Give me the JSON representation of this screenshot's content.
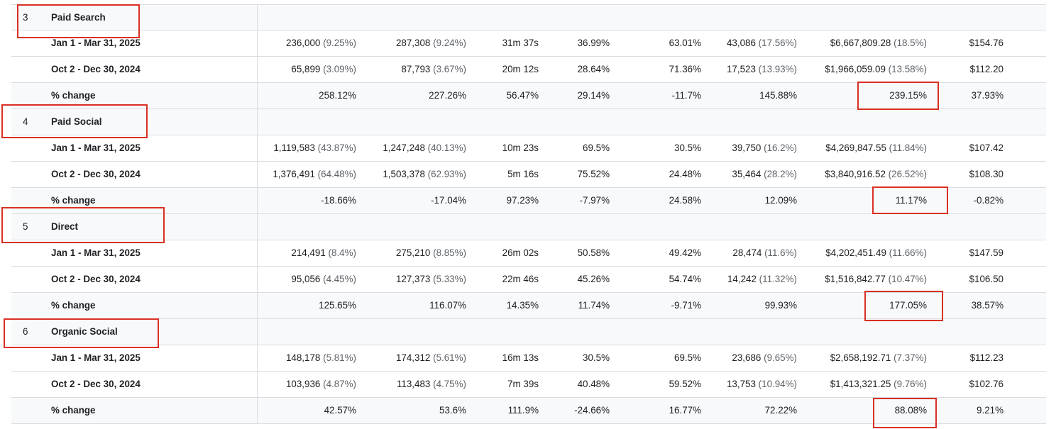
{
  "sections": [
    {
      "index": "3",
      "channel": "Paid Search",
      "rows": [
        {
          "label": "Jan 1 - Mar 31, 2025",
          "c1": "236,000",
          "c1p": "(9.25%)",
          "c2": "287,308",
          "c2p": "(9.24%)",
          "c3": "31m 37s",
          "c4": "36.99%",
          "c5": "63.01%",
          "c6": "43,086",
          "c6p": "(17.56%)",
          "c7": "$6,667,809.28",
          "c7p": "(18.5%)",
          "c8": "$154.76"
        },
        {
          "label": "Oct 2 - Dec 30, 2024",
          "c1": "65,899",
          "c1p": "(3.09%)",
          "c2": "87,793",
          "c2p": "(3.67%)",
          "c3": "20m 12s",
          "c4": "28.64%",
          "c5": "71.36%",
          "c6": "17,523",
          "c6p": "(13.93%)",
          "c7": "$1,966,059.09",
          "c7p": "(13.58%)",
          "c8": "$112.20"
        },
        {
          "label": "% change",
          "c1": "258.12%",
          "c1p": "",
          "c2": "227.26%",
          "c2p": "",
          "c3": "56.47%",
          "c4": "29.14%",
          "c5": "-11.7%",
          "c6": "145.88%",
          "c6p": "",
          "c7": "239.15%",
          "c7p": "",
          "c8": "37.93%"
        }
      ]
    },
    {
      "index": "4",
      "channel": "Paid Social",
      "rows": [
        {
          "label": "Jan 1 - Mar 31, 2025",
          "c1": "1,119,583",
          "c1p": "(43.87%)",
          "c2": "1,247,248",
          "c2p": "(40.13%)",
          "c3": "10m 23s",
          "c4": "69.5%",
          "c5": "30.5%",
          "c6": "39,750",
          "c6p": "(16.2%)",
          "c7": "$4,269,847.55",
          "c7p": "(11.84%)",
          "c8": "$107.42"
        },
        {
          "label": "Oct 2 - Dec 30, 2024",
          "c1": "1,376,491",
          "c1p": "(64.48%)",
          "c2": "1,503,378",
          "c2p": "(62.93%)",
          "c3": "5m 16s",
          "c4": "75.52%",
          "c5": "24.48%",
          "c6": "35,464",
          "c6p": "(28.2%)",
          "c7": "$3,840,916.52",
          "c7p": "(26.52%)",
          "c8": "$108.30"
        },
        {
          "label": "% change",
          "c1": "-18.66%",
          "c1p": "",
          "c2": "-17.04%",
          "c2p": "",
          "c3": "97.23%",
          "c4": "-7.97%",
          "c5": "24.58%",
          "c6": "12.09%",
          "c6p": "",
          "c7": "11.17%",
          "c7p": "",
          "c8": "-0.82%"
        }
      ]
    },
    {
      "index": "5",
      "channel": "Direct",
      "rows": [
        {
          "label": "Jan 1 - Mar 31, 2025",
          "c1": "214,491",
          "c1p": "(8.4%)",
          "c2": "275,210",
          "c2p": "(8.85%)",
          "c3": "26m 02s",
          "c4": "50.58%",
          "c5": "49.42%",
          "c6": "28,474",
          "c6p": "(11.6%)",
          "c7": "$4,202,451.49",
          "c7p": "(11.66%)",
          "c8": "$147.59"
        },
        {
          "label": "Oct 2 - Dec 30, 2024",
          "c1": "95,056",
          "c1p": "(4.45%)",
          "c2": "127,373",
          "c2p": "(5.33%)",
          "c3": "22m 46s",
          "c4": "45.26%",
          "c5": "54.74%",
          "c6": "14,242",
          "c6p": "(11.32%)",
          "c7": "$1,516,842.77",
          "c7p": "(10.47%)",
          "c8": "$106.50"
        },
        {
          "label": "% change",
          "c1": "125.65%",
          "c1p": "",
          "c2": "116.07%",
          "c2p": "",
          "c3": "14.35%",
          "c4": "11.74%",
          "c5": "-9.71%",
          "c6": "99.93%",
          "c6p": "",
          "c7": "177.05%",
          "c7p": "",
          "c8": "38.57%"
        }
      ]
    },
    {
      "index": "6",
      "channel": "Organic Social",
      "rows": [
        {
          "label": "Jan 1 - Mar 31, 2025",
          "c1": "148,178",
          "c1p": "(5.81%)",
          "c2": "174,312",
          "c2p": "(5.61%)",
          "c3": "16m 13s",
          "c4": "30.5%",
          "c5": "69.5%",
          "c6": "23,686",
          "c6p": "(9.65%)",
          "c7": "$2,658,192.71",
          "c7p": "(7.37%)",
          "c8": "$112.23"
        },
        {
          "label": "Oct 2 - Dec 30, 2024",
          "c1": "103,936",
          "c1p": "(4.87%)",
          "c2": "113,483",
          "c2p": "(4.75%)",
          "c3": "7m 39s",
          "c4": "40.48%",
          "c5": "59.52%",
          "c6": "13,753",
          "c6p": "(10.94%)",
          "c7": "$1,413,321.25",
          "c7p": "(9.76%)",
          "c8": "$102.76"
        },
        {
          "label": "% change",
          "c1": "42.57%",
          "c1p": "",
          "c2": "53.6%",
          "c2p": "",
          "c3": "111.9%",
          "c4": "-24.66%",
          "c5": "16.77%",
          "c6": "72.22%",
          "c6p": "",
          "c7": "88.08%",
          "c7p": "",
          "c8": "9.21%"
        }
      ]
    }
  ],
  "colors": {
    "highlight": "#d93025",
    "grid": "#dadce0",
    "row_grey": "#f8f9fa",
    "muted": "#5f6368"
  }
}
